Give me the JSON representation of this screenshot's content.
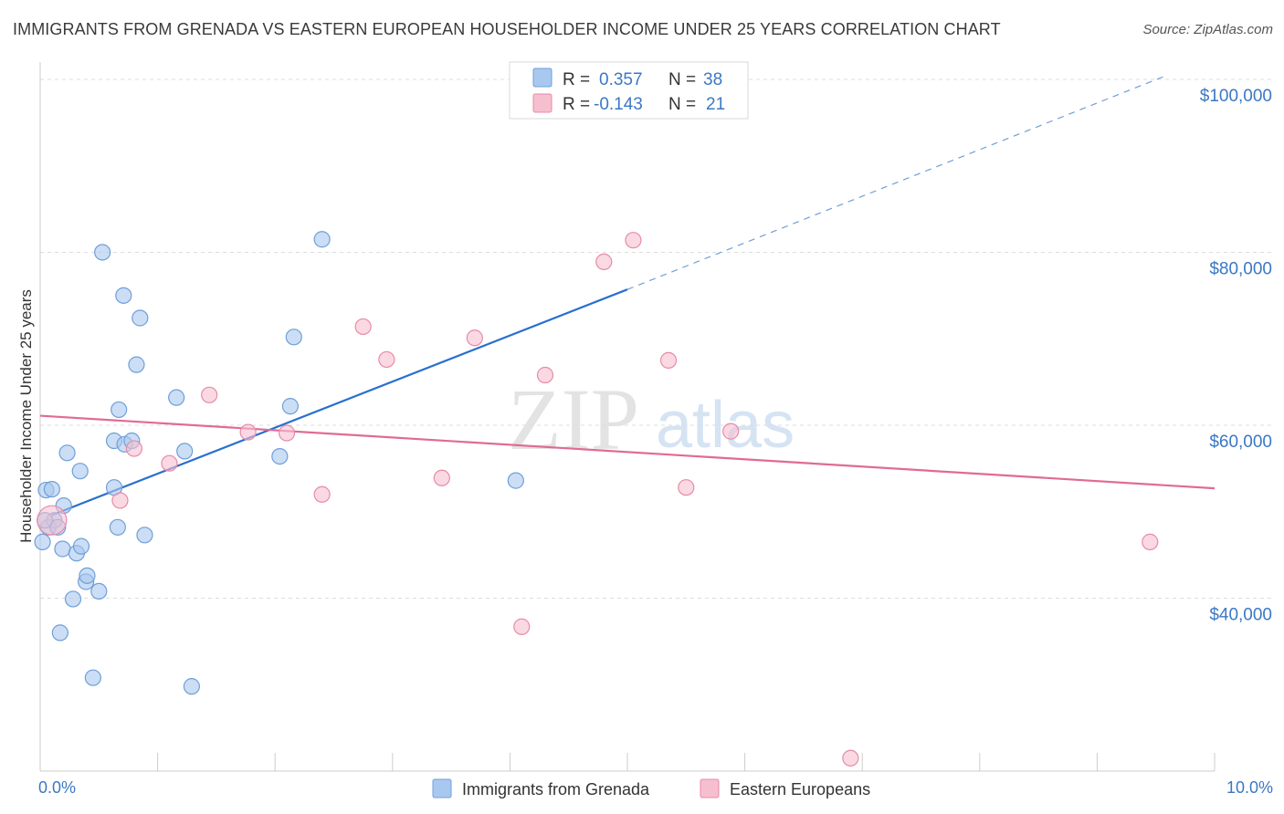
{
  "header": {
    "title": "IMMIGRANTS FROM GRENADA VS EASTERN EUROPEAN HOUSEHOLDER INCOME UNDER 25 YEARS CORRELATION CHART",
    "source": "Source: ZipAtlas.com"
  },
  "watermark": {
    "zip": "ZIP",
    "atlas": "atlas"
  },
  "colors": {
    "blue_fill": "#a9c8ef",
    "blue_stroke": "#6f9fd8",
    "blue_line": "#2a6fd0",
    "pink_fill": "#f6bfd0",
    "pink_stroke": "#e88aa8",
    "pink_line": "#e06b93",
    "grid": "#dddddd",
    "label": "#3b78c4"
  },
  "legend": {
    "rows": [
      {
        "r_label": "R =",
        "r_value": "0.357",
        "n_label": "N =",
        "n_value": "38"
      },
      {
        "r_label": "R =",
        "r_value": "-0.143",
        "n_label": "N =",
        "n_value": "21"
      }
    ]
  },
  "bottom_legend": {
    "items": [
      {
        "label": "Immigrants from Grenada"
      },
      {
        "label": "Eastern Europeans"
      }
    ]
  },
  "chart_data": {
    "type": "scatter",
    "title": "IMMIGRANTS FROM GRENADA VS EASTERN EUROPEAN HOUSEHOLDER INCOME UNDER 25 YEARS CORRELATION CHART",
    "xlabel": "",
    "ylabel": "Householder Income Under 25 years",
    "xlim": [
      0,
      10
    ],
    "ylim": [
      20000,
      102000
    ],
    "x_tick_labels": [
      {
        "value": 0,
        "label": "0.0%"
      },
      {
        "value": 10,
        "label": "10.0%"
      }
    ],
    "y_ticks": [
      {
        "value": 40000,
        "label": "$40,000"
      },
      {
        "value": 60000,
        "label": "$60,000"
      },
      {
        "value": 80000,
        "label": "$80,000"
      },
      {
        "value": 100000,
        "label": "$100,000"
      }
    ],
    "grid": true,
    "legend_position": "top-center",
    "series": [
      {
        "name": "Immigrants from Grenada",
        "color": "#a9c8ef",
        "r": 0.357,
        "n": 38,
        "trend": {
          "x0": 0.1,
          "y0": 49600,
          "x1": 5.0,
          "y1": 75700,
          "dashed_to_x": 9.6,
          "dashed_to_y": 100500
        },
        "points": [
          {
            "x": 0.02,
            "y": 46500
          },
          {
            "x": 0.05,
            "y": 52500
          },
          {
            "x": 0.07,
            "y": 48200
          },
          {
            "x": 0.1,
            "y": 52600
          },
          {
            "x": 0.12,
            "y": 49000
          },
          {
            "x": 0.15,
            "y": 48200
          },
          {
            "x": 0.17,
            "y": 36000
          },
          {
            "x": 0.19,
            "y": 45700
          },
          {
            "x": 0.2,
            "y": 50700
          },
          {
            "x": 0.23,
            "y": 56800
          },
          {
            "x": 0.28,
            "y": 39900
          },
          {
            "x": 0.31,
            "y": 45200
          },
          {
            "x": 0.34,
            "y": 54700
          },
          {
            "x": 0.35,
            "y": 46000
          },
          {
            "x": 0.39,
            "y": 41900
          },
          {
            "x": 0.4,
            "y": 42600
          },
          {
            "x": 0.45,
            "y": 30800
          },
          {
            "x": 0.5,
            "y": 40800
          },
          {
            "x": 0.53,
            "y": 80000
          },
          {
            "x": 0.63,
            "y": 52800
          },
          {
            "x": 0.63,
            "y": 58200
          },
          {
            "x": 0.66,
            "y": 48200
          },
          {
            "x": 0.67,
            "y": 61800
          },
          {
            "x": 0.71,
            "y": 75000
          },
          {
            "x": 0.72,
            "y": 57800
          },
          {
            "x": 0.78,
            "y": 58200
          },
          {
            "x": 0.82,
            "y": 67000
          },
          {
            "x": 0.85,
            "y": 72400
          },
          {
            "x": 0.89,
            "y": 47300
          },
          {
            "x": 1.16,
            "y": 63200
          },
          {
            "x": 1.23,
            "y": 57000
          },
          {
            "x": 1.29,
            "y": 29800
          },
          {
            "x": 2.04,
            "y": 56400
          },
          {
            "x": 2.13,
            "y": 62200
          },
          {
            "x": 2.16,
            "y": 70200
          },
          {
            "x": 2.4,
            "y": 81500
          },
          {
            "x": 4.05,
            "y": 53600
          },
          {
            "x": 0.04,
            "y": 49000
          }
        ]
      },
      {
        "name": "Eastern Europeans",
        "color": "#f6bfd0",
        "r": -0.143,
        "n": 21,
        "trend": {
          "x0": 0.0,
          "y0": 61100,
          "x1": 10.0,
          "y1": 52700
        },
        "points": [
          {
            "x": 0.1,
            "y": 49000
          },
          {
            "x": 0.68,
            "y": 51300
          },
          {
            "x": 0.8,
            "y": 57300
          },
          {
            "x": 1.1,
            "y": 55600
          },
          {
            "x": 1.44,
            "y": 63500
          },
          {
            "x": 1.77,
            "y": 59200
          },
          {
            "x": 2.1,
            "y": 59100
          },
          {
            "x": 2.4,
            "y": 52000
          },
          {
            "x": 2.75,
            "y": 71400
          },
          {
            "x": 2.95,
            "y": 67600
          },
          {
            "x": 3.42,
            "y": 53900
          },
          {
            "x": 3.7,
            "y": 70100
          },
          {
            "x": 4.1,
            "y": 36700
          },
          {
            "x": 4.3,
            "y": 65800
          },
          {
            "x": 4.8,
            "y": 78900
          },
          {
            "x": 5.05,
            "y": 81400
          },
          {
            "x": 5.35,
            "y": 67500
          },
          {
            "x": 5.5,
            "y": 52800
          },
          {
            "x": 5.88,
            "y": 59300
          },
          {
            "x": 6.9,
            "y": 21500
          },
          {
            "x": 9.45,
            "y": 46500
          }
        ]
      }
    ]
  }
}
